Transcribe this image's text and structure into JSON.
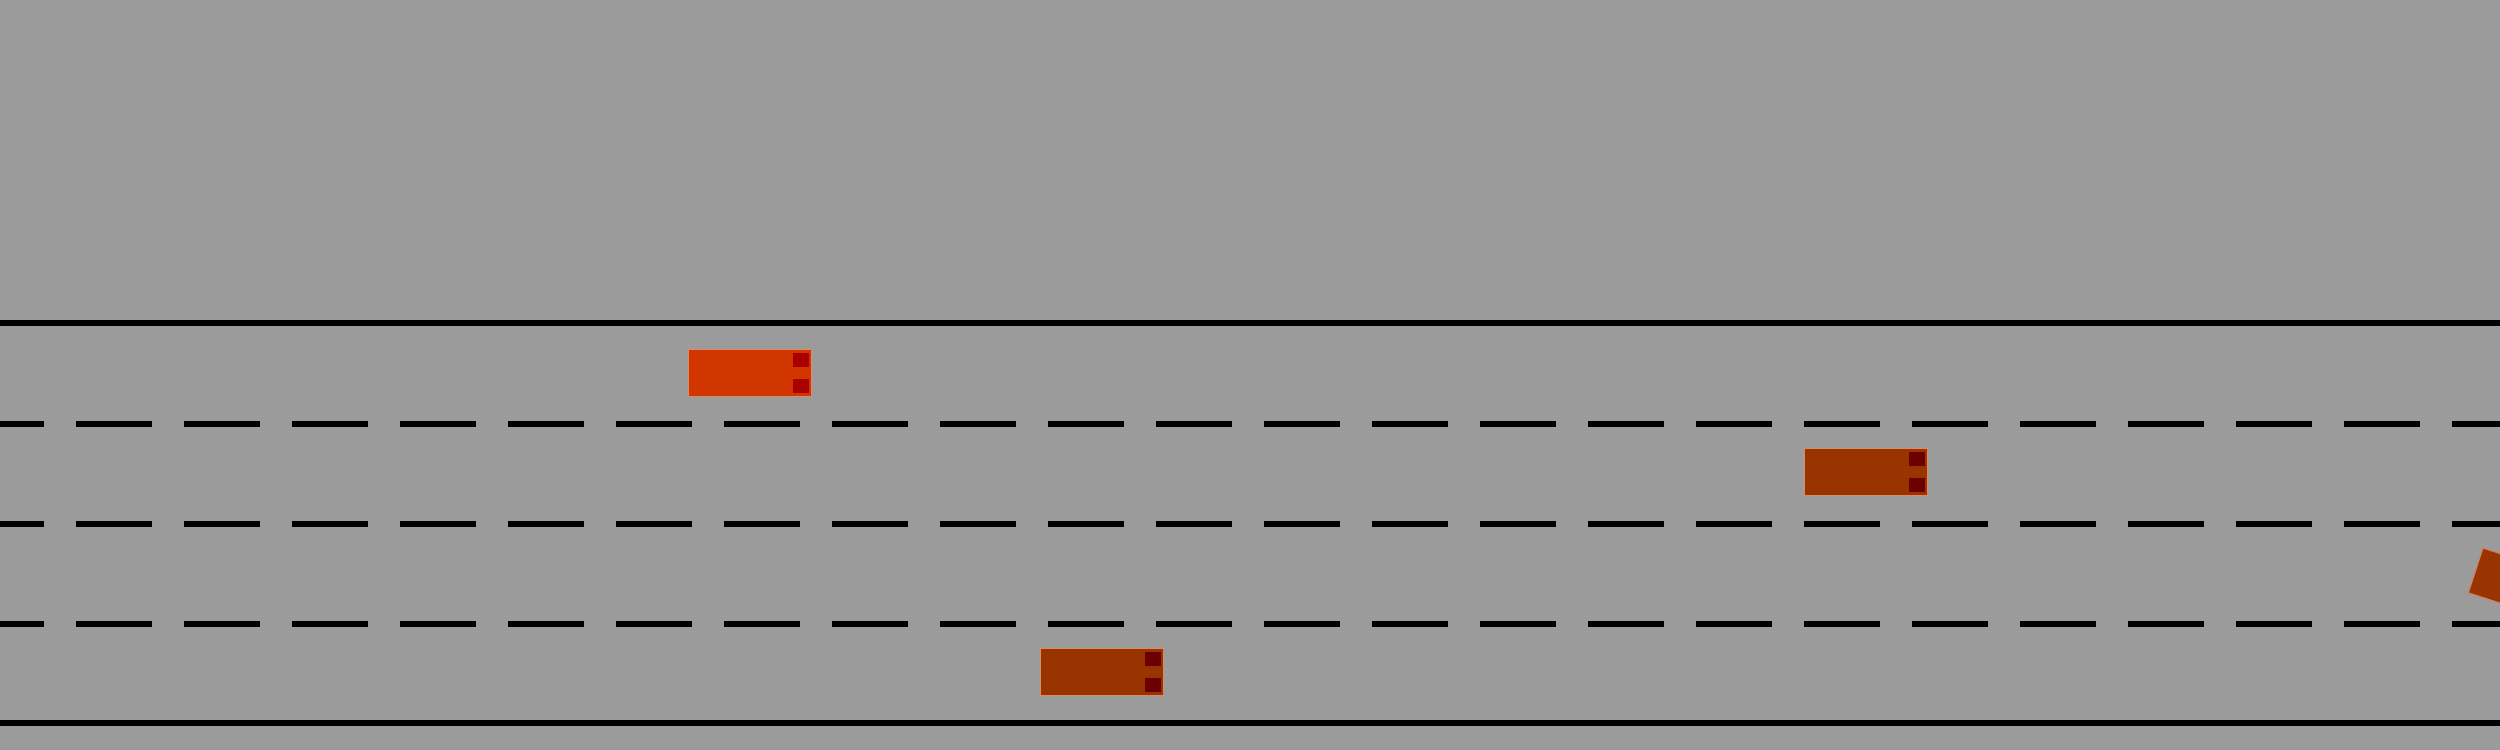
{
  "scene": {
    "type": "highway-lane-simulation",
    "lane_count": 4,
    "colors": {
      "road": "#9b9b9b",
      "markings": "#000000",
      "ego_vehicle": "#d13500",
      "other_vehicle": "#993300",
      "ego_lights": "#aa0000",
      "other_lights": "#6b0000"
    },
    "vehicles": [
      {
        "id": "ego",
        "lane": 1
      },
      {
        "id": "vehicle-2",
        "lane": 2
      },
      {
        "id": "vehicle-3",
        "lane": 4
      },
      {
        "id": "vehicle-edge",
        "lane": 3
      }
    ]
  }
}
